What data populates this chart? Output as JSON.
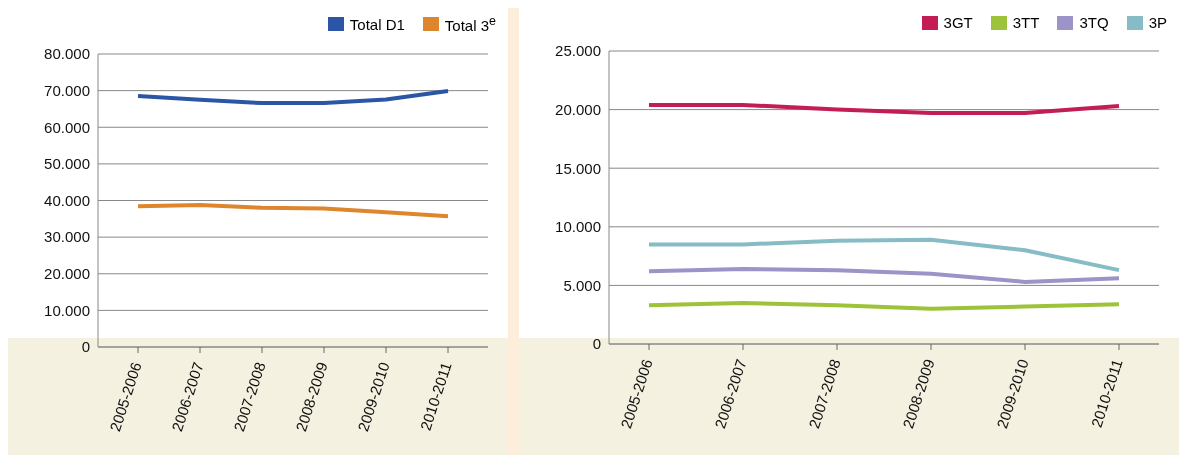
{
  "chart_data": [
    {
      "type": "line",
      "categories": [
        "2005-2006",
        "2006-2007",
        "2007-2008",
        "2008-2009",
        "2009-2010",
        "2010-2011"
      ],
      "series": [
        {
          "name": "Total D1",
          "color": "#2a56a5",
          "values": [
            68500,
            67500,
            66600,
            66600,
            67600,
            69900
          ]
        },
        {
          "name": "Total 3$^{e}$",
          "color": "#dd862e",
          "values": [
            38400,
            38800,
            38000,
            37800,
            36800,
            35700
          ]
        }
      ],
      "ylim": [
        0,
        80000
      ],
      "yticks": [
        {
          "value": 0,
          "label": "0"
        },
        {
          "value": 10000,
          "label": "10.000"
        },
        {
          "value": 20000,
          "label": "20.000"
        },
        {
          "value": 30000,
          "label": "30.000"
        },
        {
          "value": 40000,
          "label": "40.000"
        },
        {
          "value": 50000,
          "label": "50.000"
        },
        {
          "value": 60000,
          "label": "60.000"
        },
        {
          "value": 70000,
          "label": "70.000"
        },
        {
          "value": 80000,
          "label": "80.000"
        }
      ],
      "grid": "y",
      "legend": "top right",
      "marker": "none",
      "line_style": "solid"
    },
    {
      "type": "line",
      "categories": [
        "2005-2006",
        "2006-2007",
        "2007-2008",
        "2008-2009",
        "2009-2010",
        "2010-2011"
      ],
      "series": [
        {
          "name": "3GT",
          "color": "#c21e55",
          "values": [
            20400,
            20400,
            20000,
            19700,
            19700,
            20300
          ]
        },
        {
          "name": "3TT",
          "color": "#9dc33a",
          "values": [
            3300,
            3500,
            3300,
            3000,
            3200,
            3400
          ]
        },
        {
          "name": "3TQ",
          "color": "#9c93c8",
          "values": [
            6200,
            6400,
            6300,
            6000,
            5300,
            5600
          ]
        },
        {
          "name": "3P",
          "color": "#86bcc5",
          "values": [
            8500,
            8500,
            8800,
            8900,
            8000,
            6300
          ]
        }
      ],
      "ylim": [
        0,
        25000
      ],
      "yticks": [
        {
          "value": 0,
          "label": "0"
        },
        {
          "value": 5000,
          "label": "5.000"
        },
        {
          "value": 10000,
          "label": "10.000"
        },
        {
          "value": 15000,
          "label": "15.000"
        },
        {
          "value": 20000,
          "label": "20.000"
        },
        {
          "value": 25000,
          "label": "25.000"
        }
      ],
      "grid": "y",
      "legend": "top right",
      "marker": "none",
      "line_style": "solid"
    }
  ]
}
